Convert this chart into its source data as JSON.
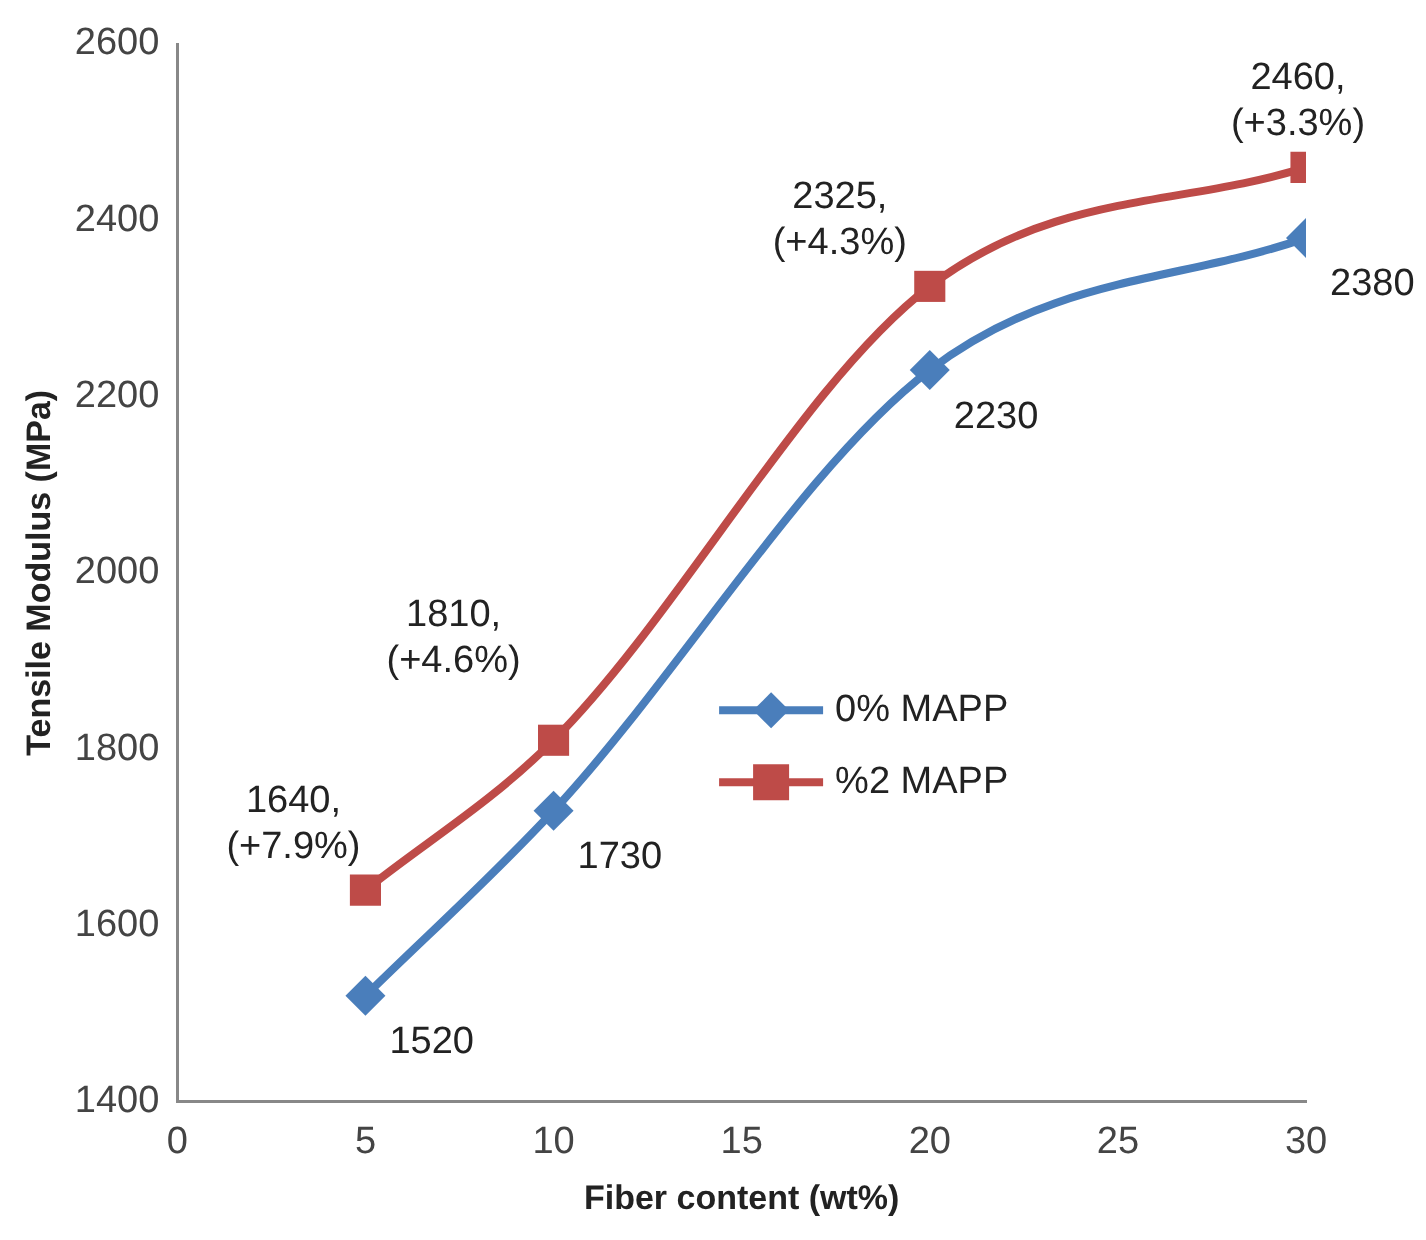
{
  "chart_data": {
    "type": "line",
    "xlabel": "Fiber content (wt%)",
    "ylabel": "Tensile Modulus (MPa)",
    "x": [
      5,
      10,
      20,
      30
    ],
    "xlim": [
      0,
      30
    ],
    "xticks": [
      0,
      5,
      10,
      15,
      20,
      25,
      30
    ],
    "ylim": [
      1400,
      2600
    ],
    "yticks": [
      1400,
      1600,
      1800,
      2000,
      2200,
      2400,
      2600
    ],
    "grid": false,
    "legend": "right",
    "series": [
      {
        "name": "0% MAPP",
        "color": "#4a7ebb",
        "marker": "diamond",
        "values": [
          1520,
          1730,
          2230,
          2380
        ],
        "value_labels": [
          "1520",
          "1730",
          "2230",
          "2380"
        ]
      },
      {
        "name": "%2 MAPP",
        "color": "#be4b48",
        "marker": "square",
        "values": [
          1640,
          1810,
          2325,
          2460
        ],
        "value_labels": [
          "1640,\n(+7.9%)",
          "1810,\n(+4.6%)",
          "2325,\n(+4.3%)",
          "2460,\n(+3.3%)"
        ]
      }
    ]
  }
}
